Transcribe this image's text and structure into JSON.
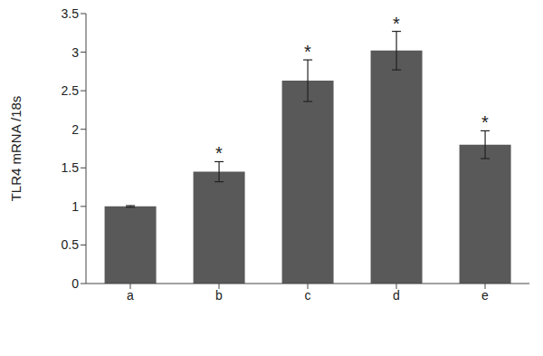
{
  "chart_data": {
    "type": "bar",
    "y_label": "TLR4 mRNA /18s",
    "categories": [
      "a",
      "b",
      "c",
      "d",
      "e"
    ],
    "values": [
      1.0,
      1.45,
      2.63,
      3.02,
      1.8
    ],
    "errors": [
      0.01,
      0.13,
      0.27,
      0.25,
      0.18
    ],
    "annotations": [
      null,
      "*",
      "*",
      "*",
      "*"
    ],
    "color": "#595959",
    "ylim": [
      0,
      3.5
    ],
    "yticks": [
      0,
      0.5,
      1,
      1.5,
      2,
      2.5,
      3,
      3.5
    ],
    "grid": false
  }
}
